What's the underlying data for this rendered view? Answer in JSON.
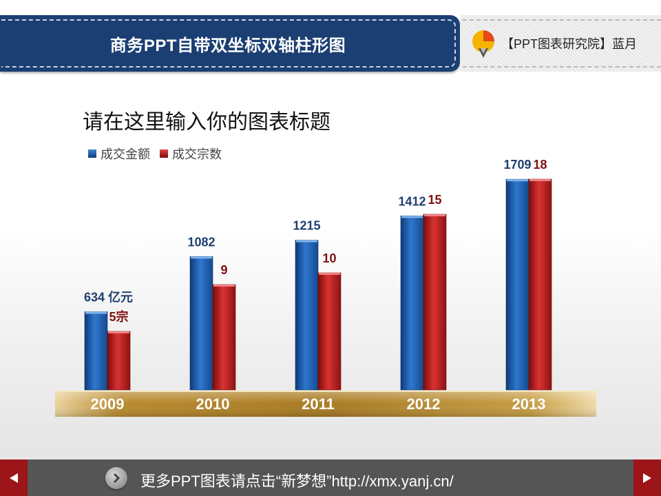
{
  "header": {
    "title": "商务PPT自带双坐标双轴柱形图",
    "brand": "【PPT图表研究院】蓝月"
  },
  "colors": {
    "header_bg": "#1b3f73",
    "series_blue": "#1f5faa",
    "series_red": "#a81c1c",
    "label_blue": "#1f3f6e",
    "label_red": "#7d1010",
    "axis_gold": "#c9a24a",
    "nav_red": "#9b1519"
  },
  "chart_data": {
    "type": "bar",
    "title": "请在这里输入你的图表标题",
    "categories": [
      "2009",
      "2010",
      "2011",
      "2012",
      "2013"
    ],
    "series": [
      {
        "name": "成交金额",
        "axis": "primary",
        "values": [
          634,
          1082,
          1215,
          1412,
          1709
        ],
        "labels": [
          "634 亿元",
          "1082",
          "1215",
          "1412",
          "1709"
        ]
      },
      {
        "name": "成交宗数",
        "axis": "secondary",
        "values": [
          5,
          9,
          10,
          15,
          18
        ],
        "labels": [
          "5宗",
          "9",
          "10",
          "15",
          "18"
        ]
      }
    ],
    "ylim_primary": [
      0,
      1900
    ],
    "ylim_secondary": [
      0,
      20
    ],
    "legend": "top-left",
    "grid": false
  },
  "footer": {
    "text": "更多PPT图表请点击“新梦想”http://xmx.yanj.cn/",
    "prev_icon": "triangle-left-icon",
    "next_icon": "triangle-right-icon",
    "link_icon": "chevron-right-circle-icon"
  }
}
